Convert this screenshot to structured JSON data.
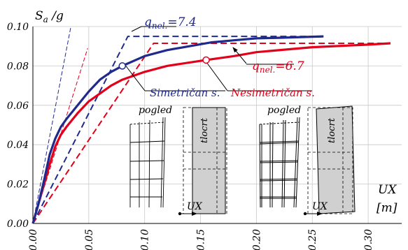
{
  "chart_data": {
    "type": "line",
    "ylabel": "Sa /g",
    "xlabel": "UX",
    "xlabel_unit": "[m]",
    "xlim": [
      0,
      0.33
    ],
    "ylim": [
      0,
      0.1
    ],
    "x_ticks": [
      "0.00",
      "0.05",
      "0.10",
      "0.15",
      "0.20",
      "0.25",
      "0.30"
    ],
    "y_ticks": [
      "0.00",
      "0.02",
      "0.04",
      "0.06",
      "0.08",
      "0.10"
    ],
    "grid": true,
    "series": [
      {
        "name": "Simetričan s.",
        "color": "#1f2a8c",
        "style": "solid",
        "points": [
          [
            0,
            0
          ],
          [
            0.005,
            0.01
          ],
          [
            0.01,
            0.022
          ],
          [
            0.015,
            0.035
          ],
          [
            0.02,
            0.043
          ],
          [
            0.025,
            0.049
          ],
          [
            0.03,
            0.053
          ],
          [
            0.04,
            0.06
          ],
          [
            0.05,
            0.067
          ],
          [
            0.06,
            0.073
          ],
          [
            0.07,
            0.077
          ],
          [
            0.08,
            0.08
          ],
          [
            0.1,
            0.085
          ],
          [
            0.12,
            0.088
          ],
          [
            0.14,
            0.09
          ],
          [
            0.16,
            0.092
          ],
          [
            0.18,
            0.093
          ],
          [
            0.2,
            0.094
          ],
          [
            0.22,
            0.0943
          ],
          [
            0.26,
            0.095
          ]
        ]
      },
      {
        "name": "Nesimetričan s.",
        "color": "#e2001a",
        "style": "solid",
        "points": [
          [
            0,
            0
          ],
          [
            0.005,
            0.01
          ],
          [
            0.01,
            0.02
          ],
          [
            0.015,
            0.03
          ],
          [
            0.02,
            0.039
          ],
          [
            0.025,
            0.045
          ],
          [
            0.03,
            0.049
          ],
          [
            0.04,
            0.056
          ],
          [
            0.05,
            0.062
          ],
          [
            0.06,
            0.066
          ],
          [
            0.07,
            0.07
          ],
          [
            0.08,
            0.073
          ],
          [
            0.1,
            0.077
          ],
          [
            0.12,
            0.08
          ],
          [
            0.155,
            0.083
          ],
          [
            0.18,
            0.085
          ],
          [
            0.2,
            0.087
          ],
          [
            0.25,
            0.0895
          ],
          [
            0.3,
            0.0908
          ],
          [
            0.32,
            0.0915
          ]
        ]
      },
      {
        "name": "bilinear blue",
        "color": "#1f2a8c",
        "style": "dashed",
        "points": [
          [
            0,
            0
          ],
          [
            0.085,
            0.095
          ],
          [
            0.26,
            0.095
          ]
        ]
      },
      {
        "name": "bilinear red",
        "color": "#e2001a",
        "style": "dashed",
        "points": [
          [
            0,
            0
          ],
          [
            0.108,
            0.0915
          ],
          [
            0.32,
            0.0915
          ]
        ]
      },
      {
        "name": "initial stiffness blue",
        "color": "#1f2a8c",
        "style": "dashed-thin",
        "points": [
          [
            0,
            0
          ],
          [
            0.034,
            0.1
          ]
        ]
      },
      {
        "name": "initial stiffness red",
        "color": "#e2001a",
        "style": "dashed-thin",
        "points": [
          [
            0,
            0
          ],
          [
            0.049,
            0.089
          ]
        ]
      }
    ],
    "markers": [
      {
        "series": "Simetričan s.",
        "x": 0.08,
        "y": 0.08
      },
      {
        "series": "Nesimetričan s.",
        "x": 0.155,
        "y": 0.083
      }
    ],
    "annotations": {
      "q_blue": {
        "prefix": "q",
        "sub": "nel.",
        "value": "=7.4",
        "color": "#1f2a8c"
      },
      "q_red": {
        "prefix": "q",
        "sub": "nel.",
        "value": "=6.7",
        "color": "#e2001a"
      },
      "label_sym": "Simetričan s.",
      "label_nonsym": "Nesimetričan s.",
      "pogled_1": "pogled",
      "pogled_2": "pogled",
      "tlocrt_1": "tlocrt",
      "tlocrt_2": "tlocrt",
      "ux_1": "UX",
      "ux_2": "UX"
    }
  }
}
